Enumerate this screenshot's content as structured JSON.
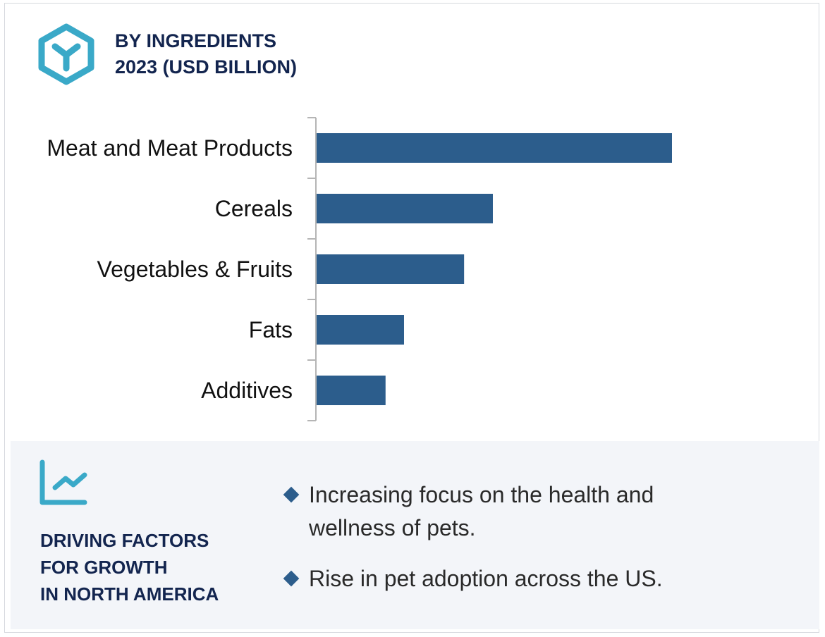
{
  "header": {
    "icon": "hexagon-y-icon",
    "title_line1": "BY INGREDIENTS",
    "title_line2": "2023 (USD BILLION)"
  },
  "chart_data": {
    "type": "bar",
    "orientation": "horizontal",
    "title": "BY INGREDIENTS 2023 (USD BILLION)",
    "categories": [
      "Meat and Meat Products",
      "Cereals",
      "Vegetables & Fruits",
      "Fats",
      "Additives"
    ],
    "values": [
      100,
      49.6,
      41.5,
      24.6,
      19.4
    ],
    "value_note": "relative index (no value axis printed)",
    "grid": false,
    "bar_color": "#2c5d8c"
  },
  "panel": {
    "icon": "trend-chart-icon",
    "title_lines": [
      "DRIVING FACTORS",
      "FOR GROWTH",
      "IN NORTH AMERICA"
    ],
    "bullets": [
      "Increasing focus on the health and wellness of pets.",
      "Rise in pet adoption across the US."
    ]
  },
  "colors": {
    "accent": "#3aa9c8",
    "title": "#13254f",
    "bar": "#2c5d8c",
    "panel_bg": "#f3f5f9"
  }
}
